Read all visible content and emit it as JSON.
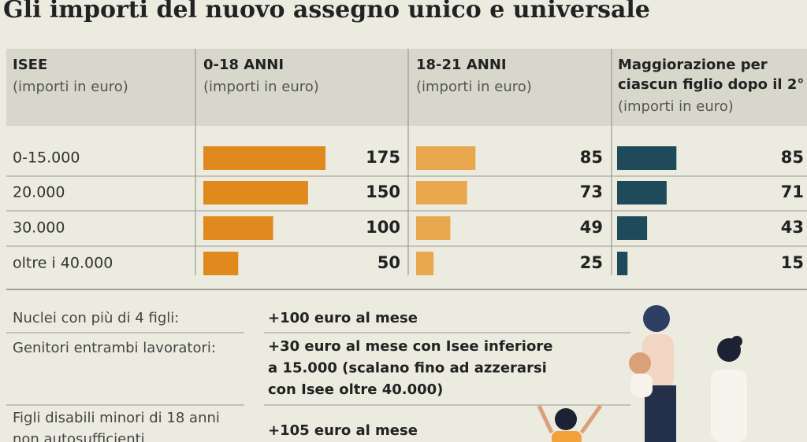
{
  "title": "Gli importi del nuovo assegno unico e universale",
  "table": {
    "header": [
      {
        "title": [
          "ISEE"
        ],
        "subtitle": "(importi in euro)"
      },
      {
        "title": [
          "0-18 ANNI"
        ],
        "subtitle": "(importi in euro)"
      },
      {
        "title": [
          "18-21 ANNI"
        ],
        "subtitle": "(importi in euro)"
      },
      {
        "title": [
          "Maggiorazione per",
          "ciascun figlio dopo il 2°"
        ],
        "subtitle": "(importi in euro)"
      }
    ],
    "colors": [
      "#e08a1e",
      "#e9a84e",
      "#1e4a5b"
    ],
    "rows": [
      {
        "isee": "0-15.000",
        "values": [
          175,
          85,
          85
        ]
      },
      {
        "isee": "20.000",
        "values": [
          150,
          73,
          71
        ]
      },
      {
        "isee": "30.000",
        "values": [
          100,
          49,
          43
        ]
      },
      {
        "isee": "oltre i 40.000",
        "values": [
          50,
          25,
          15
        ]
      }
    ]
  },
  "notes": [
    {
      "label": [
        "Nuclei con più di 4 figli:"
      ],
      "value": [
        "+100 euro al mese"
      ]
    },
    {
      "label": [
        "Genitori entrambi lavoratori:"
      ],
      "value": [
        "+30 euro al mese con Isee inferiore",
        "a 15.000 (scalano fino ad azzerarsi",
        "con Isee oltre 40.000)"
      ]
    },
    {
      "label": [
        "Figli disabili minori di 18 anni",
        "non autosufficienti"
      ],
      "value": [
        "+105 euro al mese"
      ]
    }
  ]
}
